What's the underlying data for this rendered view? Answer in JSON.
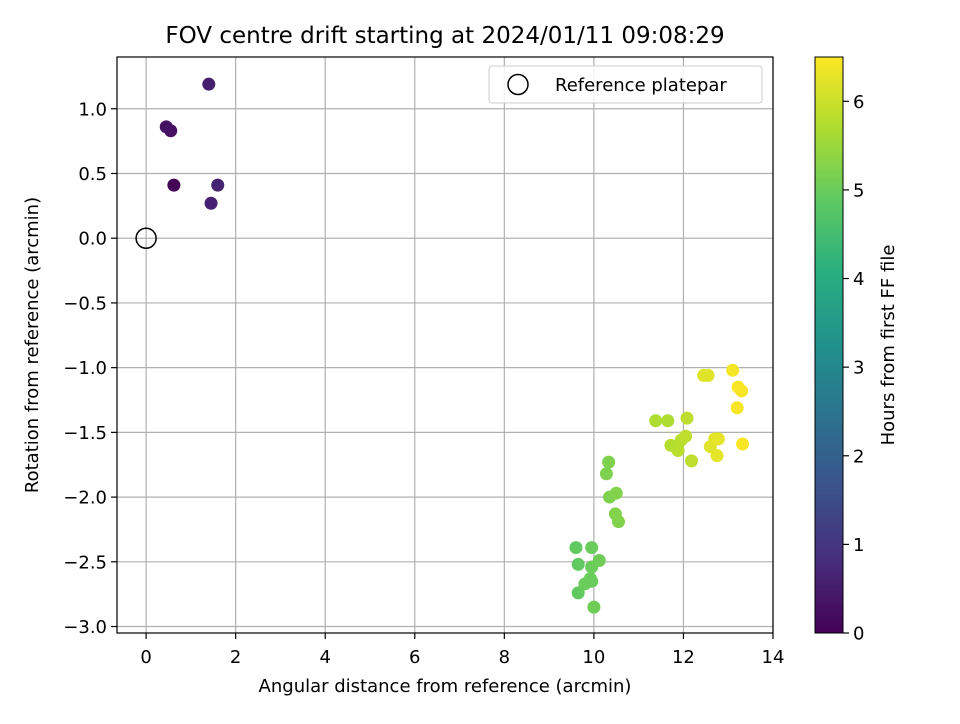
{
  "chart_data": {
    "type": "scatter",
    "title": "FOV centre drift starting at 2024/01/11 09:08:29",
    "xlabel": "Angular distance from reference (arcmin)",
    "ylabel": "Rotation from reference (arcmin)",
    "xlim": [
      -0.65,
      14.0
    ],
    "ylim": [
      -3.05,
      1.4
    ],
    "xticks": [
      0,
      2,
      4,
      6,
      8,
      10,
      12,
      14
    ],
    "xtick_labels": [
      "0",
      "2",
      "4",
      "6",
      "8",
      "10",
      "12",
      "14"
    ],
    "yticks": [
      1.0,
      0.5,
      0.0,
      -0.5,
      -1.0,
      -1.5,
      -2.0,
      -2.5,
      -3.0
    ],
    "ytick_labels": [
      "1.0",
      "0.5",
      "0.0",
      "−0.5",
      "−1.0",
      "−1.5",
      "−2.0",
      "−2.5",
      "−3.0"
    ],
    "grid": true,
    "legend": {
      "position": "top-right",
      "entries": [
        "Reference platepar"
      ]
    },
    "reference_point": {
      "x": 0.0,
      "y": 0.0
    },
    "colorbar": {
      "label": "Hours from first FF file",
      "range": [
        0,
        6.5
      ],
      "ticks": [
        0,
        1,
        2,
        3,
        4,
        5,
        6
      ],
      "tick_labels": [
        "0",
        "1",
        "2",
        "3",
        "4",
        "5",
        "6"
      ],
      "colormap": "viridis"
    },
    "points": [
      {
        "x": 0.45,
        "y": 0.86,
        "c": 0.3
      },
      {
        "x": 0.55,
        "y": 0.83,
        "c": 0.3
      },
      {
        "x": 0.62,
        "y": 0.41,
        "c": 0.05
      },
      {
        "x": 1.4,
        "y": 1.19,
        "c": 0.55
      },
      {
        "x": 1.6,
        "y": 0.41,
        "c": 0.65
      },
      {
        "x": 1.45,
        "y": 0.27,
        "c": 0.6
      },
      {
        "x": 9.6,
        "y": -2.39,
        "c": 4.9
      },
      {
        "x": 9.65,
        "y": -2.52,
        "c": 4.9
      },
      {
        "x": 9.65,
        "y": -2.74,
        "c": 4.9
      },
      {
        "x": 9.8,
        "y": -2.67,
        "c": 5.0
      },
      {
        "x": 9.95,
        "y": -2.39,
        "c": 5.0
      },
      {
        "x": 9.95,
        "y": -2.54,
        "c": 5.0
      },
      {
        "x": 9.95,
        "y": -2.65,
        "c": 5.0
      },
      {
        "x": 9.92,
        "y": -2.63,
        "c": 5.0
      },
      {
        "x": 10.0,
        "y": -2.85,
        "c": 5.05
      },
      {
        "x": 10.12,
        "y": -2.49,
        "c": 5.05
      },
      {
        "x": 10.28,
        "y": -1.82,
        "c": 5.2
      },
      {
        "x": 10.33,
        "y": -1.73,
        "c": 5.2
      },
      {
        "x": 10.35,
        "y": -2.0,
        "c": 5.2
      },
      {
        "x": 10.5,
        "y": -1.97,
        "c": 5.25
      },
      {
        "x": 10.48,
        "y": -2.13,
        "c": 5.25
      },
      {
        "x": 10.55,
        "y": -2.19,
        "c": 5.25
      },
      {
        "x": 11.38,
        "y": -1.41,
        "c": 5.7
      },
      {
        "x": 11.65,
        "y": -1.41,
        "c": 5.7
      },
      {
        "x": 11.72,
        "y": -1.6,
        "c": 5.75
      },
      {
        "x": 11.88,
        "y": -1.64,
        "c": 5.8
      },
      {
        "x": 11.95,
        "y": -1.56,
        "c": 5.8
      },
      {
        "x": 12.05,
        "y": -1.53,
        "c": 5.85
      },
      {
        "x": 12.08,
        "y": -1.39,
        "c": 5.85
      },
      {
        "x": 12.18,
        "y": -1.72,
        "c": 5.85
      },
      {
        "x": 12.45,
        "y": -1.06,
        "c": 6.2
      },
      {
        "x": 12.55,
        "y": -1.06,
        "c": 6.2
      },
      {
        "x": 12.6,
        "y": -1.61,
        "c": 6.2
      },
      {
        "x": 12.7,
        "y": -1.55,
        "c": 6.25
      },
      {
        "x": 12.75,
        "y": -1.68,
        "c": 6.25
      },
      {
        "x": 12.78,
        "y": -1.55,
        "c": 6.25
      },
      {
        "x": 13.1,
        "y": -1.02,
        "c": 6.4
      },
      {
        "x": 13.2,
        "y": -1.31,
        "c": 6.45
      },
      {
        "x": 13.22,
        "y": -1.15,
        "c": 6.45
      },
      {
        "x": 13.3,
        "y": -1.18,
        "c": 6.45
      },
      {
        "x": 13.32,
        "y": -1.59,
        "c": 6.45
      }
    ]
  }
}
